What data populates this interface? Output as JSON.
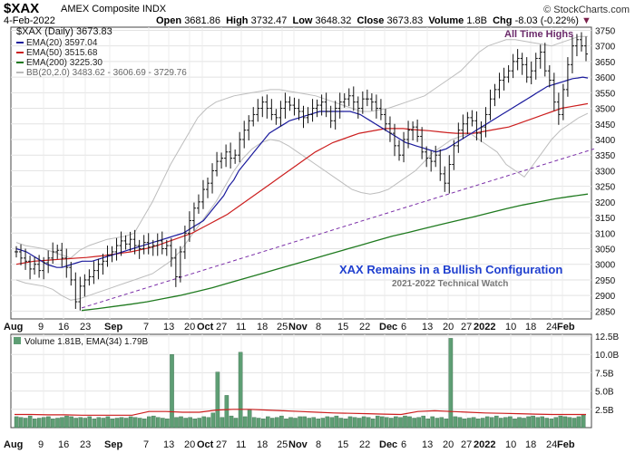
{
  "header": {
    "symbol": "$XAX",
    "name": "AMEX Composite INDX",
    "watermark": "© StockCharts.com",
    "date": "4-Feb-2022",
    "open_label": "Open",
    "open": "3681.86",
    "high_label": "High",
    "high": "3732.47",
    "low_label": "Low",
    "low": "3648.32",
    "close_label": "Close",
    "close": "3673.83",
    "volume_label": "Volume",
    "volume": "1.8B",
    "chg_label": "Chg",
    "chg": "-8.03 (-0.22%)"
  },
  "legend": {
    "price": "$XAX (Daily) 3673.83",
    "ema20": "EMA(20) 3597.04",
    "ema50": "EMA(50) 3515.68",
    "ema200": "EMA(200) 3225.30",
    "bb": "BB(20,2.0) 3483.62 - 3606.69 - 3729.76"
  },
  "annotations": {
    "ath": "All Time Highs",
    "title": "XAX Remains in a Bullish Configuration",
    "subtitle": "2021-2022 Technical Watch"
  },
  "volume_legend": "Volume 1.81B, EMA(34) 1.79B",
  "colors": {
    "ema20": "#1a1a9c",
    "ema50": "#cc1f1f",
    "ema200": "#1f7a1f",
    "bb": "#bdbdbd",
    "trend": "#7b2fa8",
    "volume": "#5e9e74",
    "annotation_title": "#1f3fcf",
    "ath": "#6b2a6b"
  },
  "chart_data": [
    {
      "type": "line",
      "name": "Price panel",
      "y_ticks": [
        2850,
        2900,
        2950,
        3000,
        3050,
        3100,
        3150,
        3200,
        3250,
        3300,
        3350,
        3400,
        3450,
        3500,
        3550,
        3600,
        3650,
        3700,
        3750
      ],
      "ylim": [
        2825,
        3760
      ],
      "x_month_labels": [
        "Aug",
        "Sep",
        "Oct",
        "Nov",
        "Dec",
        "2022",
        "Feb"
      ],
      "x_day_labels": [
        "9",
        "16",
        "23",
        "7",
        "13",
        "20",
        "27",
        "11",
        "18",
        "25",
        "8",
        "15",
        "22",
        "6",
        "13",
        "20",
        "27",
        "10",
        "18",
        "24"
      ],
      "close_series": {
        "name": "$XAX",
        "values": [
          3040,
          3020,
          3010,
          2985,
          3000,
          2980,
          3005,
          3020,
          3040,
          3045,
          3020,
          2990,
          2950,
          2880,
          2930,
          2950,
          2960,
          2980,
          3000,
          3010,
          3030,
          3040,
          3060,
          3075,
          3065,
          3080,
          3060,
          3050,
          3070,
          3055,
          3060,
          3075,
          3050,
          3060,
          3020,
          2960,
          3040,
          3100,
          3140,
          3180,
          3200,
          3240,
          3260,
          3300,
          3330,
          3340,
          3360,
          3340,
          3350,
          3400,
          3430,
          3460,
          3480,
          3500,
          3520,
          3500,
          3480,
          3470,
          3500,
          3520,
          3510,
          3500,
          3490,
          3470,
          3480,
          3500,
          3510,
          3520,
          3490,
          3460,
          3500,
          3520,
          3530,
          3540,
          3520,
          3500,
          3530,
          3530,
          3520,
          3500,
          3480,
          3450,
          3420,
          3380,
          3350,
          3400,
          3430,
          3440,
          3410,
          3360,
          3340,
          3330,
          3350,
          3290,
          3260,
          3320,
          3380,
          3430,
          3450,
          3470,
          3460,
          3420,
          3440,
          3480,
          3530,
          3560,
          3590,
          3600,
          3620,
          3650,
          3660,
          3640,
          3600,
          3620,
          3660,
          3680,
          3620,
          3590,
          3520,
          3480,
          3560,
          3640,
          3700,
          3720,
          3700,
          3674
        ]
      },
      "series": [
        {
          "name": "EMA(20)",
          "values": [
            3050,
            3045,
            3040,
            3030,
            3020,
            3010,
            3000,
            2995,
            2990,
            2990,
            2995,
            3000,
            3005,
            3010,
            3010,
            3010,
            3015,
            3020,
            3025,
            3030,
            3035,
            3040,
            3045,
            3050,
            3055,
            3060,
            3065,
            3070,
            3075,
            3080,
            3085,
            3090,
            3095,
            3100,
            3110,
            3120,
            3130,
            3140,
            3160,
            3180,
            3200,
            3220,
            3250,
            3270,
            3300,
            3320,
            3340,
            3360,
            3380,
            3400,
            3420,
            3430,
            3440,
            3450,
            3460,
            3465,
            3470,
            3475,
            3480,
            3485,
            3490,
            3490,
            3490,
            3490,
            3490,
            3490,
            3490,
            3485,
            3480,
            3470,
            3460,
            3450,
            3440,
            3430,
            3420,
            3410,
            3400,
            3390,
            3385,
            3380,
            3375,
            3370,
            3365,
            3360,
            3365,
            3370,
            3380,
            3390,
            3400,
            3410,
            3420,
            3430,
            3440,
            3450,
            3460,
            3470,
            3480,
            3490,
            3500,
            3510,
            3520,
            3530,
            3540,
            3550,
            3560,
            3570,
            3575,
            3580,
            3585,
            3590,
            3595,
            3597,
            3600,
            3597
          ]
        },
        {
          "name": "EMA(50)",
          "values": [
            3000,
            3005,
            3010,
            3012,
            3014,
            3016,
            3018,
            3020,
            3022,
            3025,
            3028,
            3032,
            3036,
            3040,
            3046,
            3052,
            3060,
            3070,
            3080,
            3090,
            3100,
            3115,
            3130,
            3145,
            3160,
            3180,
            3200,
            3220,
            3240,
            3260,
            3280,
            3300,
            3320,
            3340,
            3360,
            3375,
            3390,
            3400,
            3410,
            3420,
            3425,
            3430,
            3435,
            3435,
            3435,
            3432,
            3430,
            3428,
            3425,
            3422,
            3420,
            3420,
            3420,
            3425,
            3430,
            3435,
            3440,
            3450,
            3460,
            3470,
            3480,
            3490,
            3500,
            3505,
            3510,
            3515
          ]
        },
        {
          "name": "EMA(200)",
          "values": [
            2852,
            2858,
            2865,
            2872,
            2880,
            2890,
            2900,
            2912,
            2925,
            2940,
            2955,
            2970,
            2985,
            3000,
            3015,
            3030,
            3045,
            3060,
            3075,
            3090,
            3102,
            3115,
            3128,
            3140,
            3152,
            3165,
            3178,
            3190,
            3200,
            3210,
            3218,
            3225
          ]
        },
        {
          "name": "BB upper",
          "values": [
            3070,
            3060,
            3055,
            3050,
            3040,
            3030,
            3020,
            3045,
            3060,
            3070,
            3080,
            3085,
            3090,
            3100,
            3150,
            3200,
            3260,
            3320,
            3370,
            3420,
            3470,
            3500,
            3520,
            3530,
            3540,
            3545,
            3550,
            3555,
            3560,
            3560,
            3555,
            3550,
            3545,
            3540,
            3530,
            3520,
            3510,
            3500,
            3490,
            3490,
            3495,
            3500,
            3510,
            3520,
            3530,
            3540,
            3560,
            3580,
            3600,
            3620,
            3650,
            3680,
            3700,
            3710,
            3720,
            3720,
            3715,
            3710,
            3705,
            3700,
            3710,
            3720,
            3730,
            3730
          ]
        },
        {
          "name": "BB lower",
          "values": [
            2950,
            2940,
            2935,
            2930,
            2920,
            2900,
            2885,
            2890,
            2900,
            2910,
            2920,
            2930,
            2940,
            2950,
            2960,
            2970,
            2990,
            3010,
            3040,
            3080,
            3120,
            3160,
            3200,
            3250,
            3300,
            3340,
            3370,
            3390,
            3400,
            3395,
            3380,
            3360,
            3340,
            3320,
            3300,
            3280,
            3260,
            3240,
            3230,
            3225,
            3230,
            3240,
            3260,
            3280,
            3300,
            3330,
            3360,
            3380,
            3400,
            3410,
            3420,
            3400,
            3380,
            3360,
            3320,
            3300,
            3280,
            3320,
            3360,
            3400,
            3430,
            3450,
            3470,
            3484
          ]
        },
        {
          "name": "Trend line",
          "values": [
            2860,
            3370
          ]
        }
      ],
      "annotations": [
        "All Time Highs",
        "XAX Remains in a Bullish Configuration",
        "2021-2022 Technical Watch"
      ]
    },
    {
      "type": "bar",
      "name": "Volume panel",
      "y_ticks": [
        "2.5B",
        "5.0B",
        "7.5B",
        "10.0B",
        "12.5B"
      ],
      "ylim": [
        0,
        12.5
      ],
      "volume_billions": [
        1.5,
        1.4,
        1.3,
        1.6,
        1.2,
        1.3,
        1.4,
        1.5,
        1.2,
        1.3,
        1.4,
        1.6,
        1.5,
        1.3,
        1.4,
        1.3,
        1.5,
        1.2,
        1.4,
        1.3,
        1.5,
        1.2,
        1.3,
        1.4,
        1.3,
        1.5,
        1.4,
        1.3,
        1.2,
        1.5,
        1.6,
        1.4,
        1.3,
        1.2,
        10.0,
        1.4,
        1.5,
        1.3,
        1.4,
        1.2,
        1.3,
        1.5,
        1.4,
        2.0,
        7.6,
        1.4,
        4.4,
        1.6,
        1.3,
        10.3,
        1.5,
        2.4,
        1.4,
        1.3,
        1.2,
        1.5,
        1.3,
        1.4,
        1.6,
        1.2,
        1.4,
        1.3,
        1.5,
        1.5,
        1.3,
        1.4,
        1.2,
        1.3,
        1.5,
        1.4,
        1.6,
        1.3,
        1.2,
        1.5,
        1.4,
        1.3,
        1.5,
        1.4,
        1.2,
        1.6,
        1.5,
        1.4,
        1.3,
        1.5,
        1.4,
        1.6,
        1.5,
        1.3,
        1.4,
        1.6,
        1.2,
        1.5,
        1.3,
        1.4,
        1.2,
        12.2,
        1.5,
        1.4,
        1.2,
        1.3,
        1.4,
        1.2,
        1.3,
        1.5,
        1.4,
        1.6,
        1.3,
        1.4,
        1.5,
        1.2,
        1.4,
        1.3,
        1.5,
        1.6,
        1.4,
        1.5,
        1.3,
        1.2,
        1.4,
        1.6,
        1.5,
        1.4,
        1.3,
        1.5,
        1.8
      ],
      "ema34_billions": [
        1.8,
        1.8,
        1.75,
        1.75,
        1.7,
        1.7,
        1.7,
        1.7,
        2.2,
        2.2,
        2.1,
        2.1,
        2.4,
        2.5,
        2.5,
        2.4,
        2.3,
        2.2,
        2.1,
        2.0,
        1.95,
        1.9,
        1.85,
        1.8,
        2.2,
        2.3,
        2.2,
        2.1,
        2.0,
        1.95,
        1.9,
        1.85,
        1.8,
        1.8,
        1.79
      ]
    }
  ]
}
